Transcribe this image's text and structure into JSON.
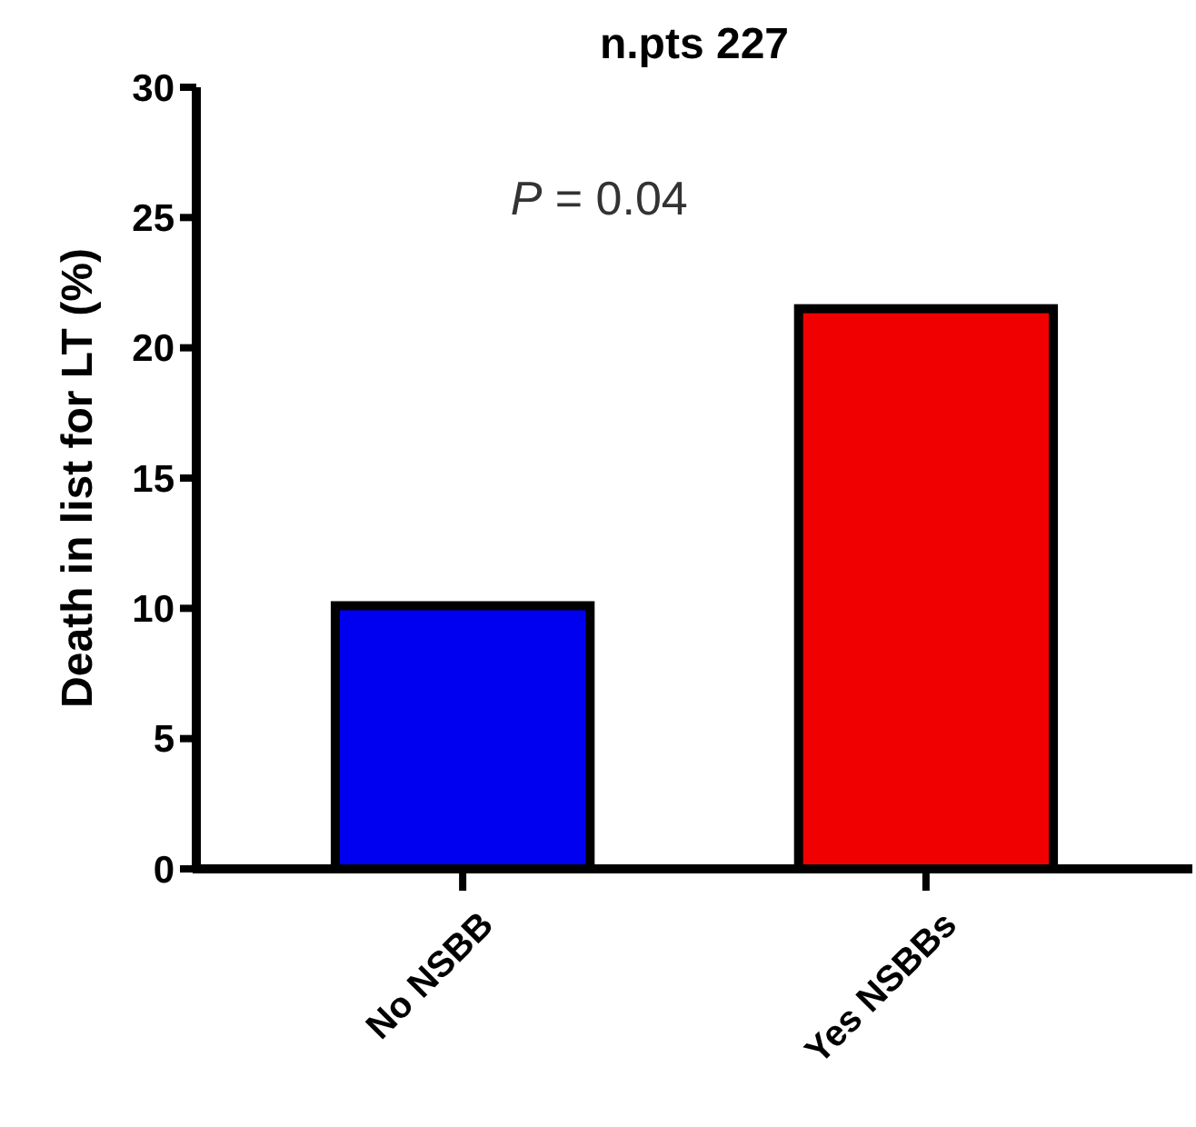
{
  "chart_data": {
    "type": "bar",
    "title": "n.pts 227",
    "ylabel": "Death in list for LT (%)",
    "categories": [
      "No NSBB",
      "Yes NSBBs"
    ],
    "values": [
      10.1,
      21.5
    ],
    "colors": [
      "#0000f0",
      "#f00000"
    ],
    "ylim": [
      0,
      30
    ],
    "yticks": [
      0,
      5,
      10,
      15,
      20,
      25,
      30
    ],
    "annotations": [
      "P = 0.04"
    ]
  }
}
